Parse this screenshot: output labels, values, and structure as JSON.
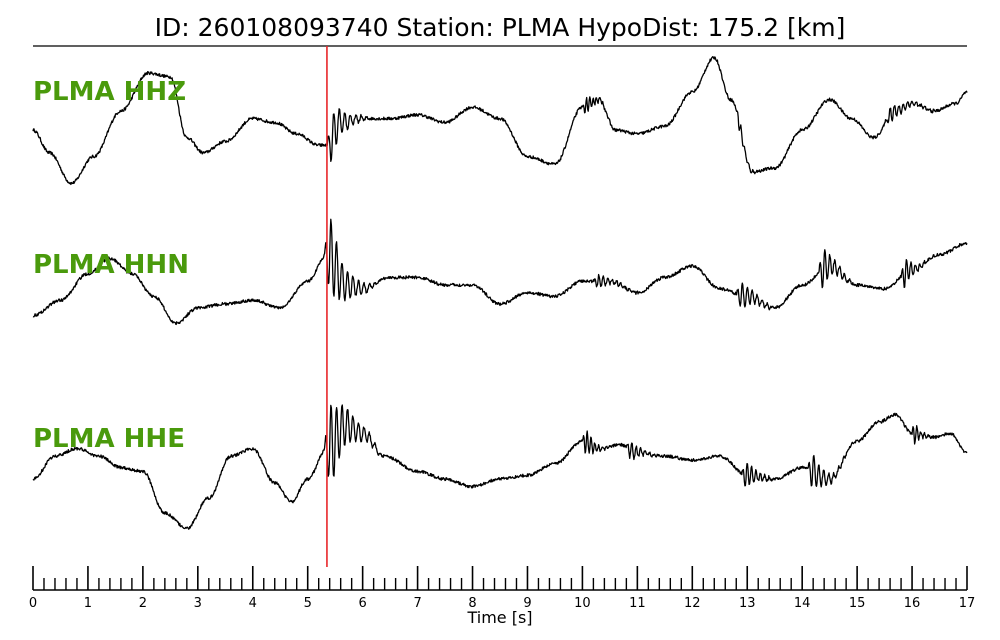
{
  "chart_data": {
    "type": "line",
    "title": "ID: 260108093740   Station: PLMA   HypoDist:   175.2 [km]",
    "xlabel": "Time [s]",
    "xlim": [
      0,
      17
    ],
    "x_ticks": [
      0,
      1,
      2,
      3,
      4,
      5,
      6,
      7,
      8,
      9,
      10,
      11,
      12,
      13,
      14,
      15,
      16,
      17
    ],
    "minor_tick_step": 0.2,
    "pick_time": 5.35,
    "pick_color": "#e8262a",
    "label_color": "#4a9a0c",
    "trace_color": "#000000",
    "series": [
      {
        "name": "PLMA HHZ",
        "x": [
          0,
          0.3,
          0.7,
          1.1,
          1.6,
          2.1,
          2.5,
          2.8,
          3.1,
          3.5,
          4.0,
          4.4,
          4.8,
          5.2,
          5.35,
          5.6,
          6.0,
          6.5,
          7.0,
          7.5,
          8.0,
          8.5,
          9.0,
          9.5,
          10.0,
          10.3,
          10.6,
          11.0,
          11.5,
          12.0,
          12.4,
          12.7,
          13.1,
          13.5,
          14.0,
          14.5,
          14.9,
          15.3,
          15.7,
          16.0,
          16.4,
          16.8,
          17.0
        ],
        "y": [
          0.0,
          -0.6,
          -1.4,
          -0.7,
          0.5,
          1.5,
          1.4,
          -0.2,
          -0.6,
          -0.3,
          0.3,
          0.2,
          -0.1,
          -0.4,
          -0.4,
          0.2,
          0.3,
          0.3,
          0.4,
          0.2,
          0.6,
          0.3,
          -0.7,
          -0.9,
          0.6,
          0.8,
          0.0,
          -0.1,
          0.1,
          1.0,
          1.9,
          0.8,
          -1.1,
          -1.0,
          0.0,
          0.8,
          0.3,
          -0.2,
          0.5,
          0.7,
          0.5,
          0.7,
          1.0
        ],
        "noise": 0.08
      },
      {
        "name": "PLMA HHN",
        "x": [
          0,
          0.5,
          1.0,
          1.4,
          1.8,
          2.2,
          2.6,
          3.0,
          3.5,
          4.0,
          4.5,
          5.0,
          5.35,
          5.7,
          6.0,
          6.5,
          7.0,
          7.5,
          8.0,
          8.5,
          9.0,
          9.5,
          10.0,
          10.5,
          11.0,
          11.5,
          12.0,
          12.5,
          13.0,
          13.5,
          14.0,
          14.5,
          15.0,
          15.5,
          16.0,
          16.5,
          17.0
        ],
        "y": [
          -0.8,
          -0.4,
          0.3,
          0.7,
          0.3,
          -0.3,
          -1.0,
          -0.6,
          -0.5,
          -0.4,
          -0.6,
          0.1,
          0.8,
          0.0,
          -0.1,
          0.2,
          0.2,
          0.0,
          0.0,
          -0.5,
          -0.2,
          -0.3,
          0.1,
          0.1,
          -0.2,
          0.2,
          0.5,
          -0.1,
          -0.3,
          -0.6,
          0.0,
          0.5,
          0.0,
          -0.1,
          0.4,
          0.8,
          1.1
        ],
        "noise": 0.08
      },
      {
        "name": "PLMA HHE",
        "x": [
          0,
          0.4,
          0.8,
          1.2,
          1.6,
          2.0,
          2.4,
          2.8,
          3.2,
          3.6,
          4.0,
          4.4,
          4.7,
          5.0,
          5.35,
          5.7,
          6.0,
          6.4,
          7.0,
          7.5,
          8.0,
          8.5,
          9.0,
          9.5,
          10.0,
          10.3,
          10.7,
          11.0,
          11.5,
          12.0,
          12.5,
          13.0,
          13.5,
          14.0,
          14.5,
          15.0,
          15.4,
          15.7,
          16.0,
          16.4,
          16.7,
          17.0
        ],
        "y": [
          -0.5,
          0.1,
          0.3,
          0.1,
          -0.2,
          -0.3,
          -1.4,
          -1.8,
          -1.0,
          0.1,
          0.3,
          -0.6,
          -1.1,
          -0.5,
          0.3,
          0.9,
          0.7,
          0.1,
          -0.3,
          -0.5,
          -0.7,
          -0.5,
          -0.4,
          -0.1,
          0.5,
          0.3,
          0.4,
          0.2,
          0.1,
          0.0,
          0.1,
          -0.4,
          -0.5,
          -0.2,
          -0.5,
          0.5,
          1.0,
          1.2,
          0.7,
          0.6,
          0.7,
          0.2
        ],
        "noise": 0.08
      }
    ],
    "bursts": [
      {
        "series": 0,
        "t0": 5.35,
        "t1": 6.1,
        "amp": 0.9,
        "period": 0.1
      },
      {
        "series": 0,
        "t0": 10.0,
        "t1": 10.5,
        "amp": 0.35,
        "period": 0.06
      },
      {
        "series": 0,
        "t0": 12.8,
        "t1": 13.2,
        "amp": 0.25,
        "period": 0.07
      },
      {
        "series": 0,
        "t0": 15.5,
        "t1": 16.4,
        "amp": 0.3,
        "period": 0.08
      },
      {
        "series": 1,
        "t0": 5.3,
        "t1": 6.2,
        "amp": 1.5,
        "period": 0.1
      },
      {
        "series": 1,
        "t0": 10.2,
        "t1": 11.0,
        "amp": 0.25,
        "period": 0.08
      },
      {
        "series": 1,
        "t0": 12.8,
        "t1": 13.6,
        "amp": 0.5,
        "period": 0.09
      },
      {
        "series": 1,
        "t0": 14.3,
        "t1": 14.9,
        "amp": 0.8,
        "period": 0.09
      },
      {
        "series": 1,
        "t0": 15.8,
        "t1": 16.3,
        "amp": 0.6,
        "period": 0.08
      },
      {
        "series": 2,
        "t0": 5.3,
        "t1": 6.3,
        "amp": 1.6,
        "period": 0.1
      },
      {
        "series": 2,
        "t0": 10.0,
        "t1": 10.5,
        "amp": 0.5,
        "period": 0.07
      },
      {
        "series": 2,
        "t0": 10.8,
        "t1": 11.4,
        "amp": 0.35,
        "period": 0.08
      },
      {
        "series": 2,
        "t0": 12.9,
        "t1": 13.5,
        "amp": 0.55,
        "period": 0.08
      },
      {
        "series": 2,
        "t0": 14.1,
        "t1": 14.8,
        "amp": 0.7,
        "period": 0.09
      },
      {
        "series": 2,
        "t0": 16.0,
        "t1": 16.3,
        "amp": 0.45,
        "period": 0.07
      }
    ]
  }
}
